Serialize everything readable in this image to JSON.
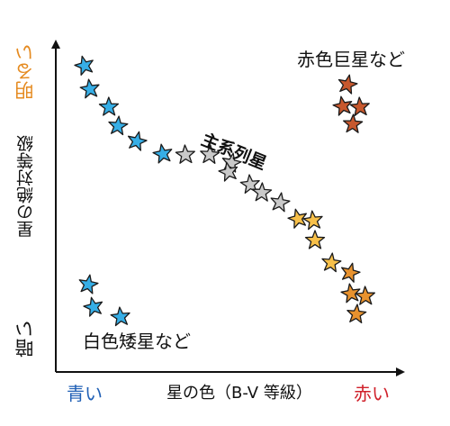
{
  "diagram": {
    "y_label": "星の絶対等級",
    "y_top": "明るい",
    "y_bottom": "暗い",
    "x_label": "星の色（B-V 等級）",
    "x_left": "青い",
    "x_right": "赤い",
    "label_main_sequence": "主系列星",
    "label_red_giants": "赤色巨星など",
    "label_white_dwarfs": "白色矮星など"
  },
  "colors": {
    "bright": "#e58a1f",
    "blue_word": "#1f5fb5",
    "red_word": "#d0202a",
    "star_blue": "#36aee6",
    "star_gray": "#c9c9c9",
    "star_yellow": "#f7c04a",
    "star_orange": "#e8922e",
    "star_red": "#c7582e"
  },
  "stars": [
    {
      "group": "main-sequence",
      "color": "blue"
    },
    {
      "group": "main-sequence",
      "color": "blue"
    },
    {
      "group": "main-sequence",
      "color": "blue"
    },
    {
      "group": "main-sequence",
      "color": "blue"
    },
    {
      "group": "main-sequence",
      "color": "blue"
    },
    {
      "group": "main-sequence",
      "color": "blue"
    },
    {
      "group": "main-sequence",
      "color": "gray"
    },
    {
      "group": "main-sequence",
      "color": "gray"
    },
    {
      "group": "main-sequence",
      "color": "gray"
    },
    {
      "group": "main-sequence",
      "color": "gray"
    },
    {
      "group": "main-sequence",
      "color": "gray"
    },
    {
      "group": "main-sequence",
      "color": "gray"
    },
    {
      "group": "main-sequence",
      "color": "gray"
    },
    {
      "group": "main-sequence",
      "color": "yellow"
    },
    {
      "group": "main-sequence",
      "color": "yellow"
    },
    {
      "group": "main-sequence",
      "color": "yellow"
    },
    {
      "group": "main-sequence",
      "color": "yellow"
    },
    {
      "group": "main-sequence",
      "color": "orange"
    },
    {
      "group": "main-sequence",
      "color": "orange"
    },
    {
      "group": "main-sequence",
      "color": "orange"
    },
    {
      "group": "main-sequence",
      "color": "orange"
    },
    {
      "group": "giant",
      "color": "red"
    },
    {
      "group": "giant",
      "color": "red"
    },
    {
      "group": "giant",
      "color": "red"
    },
    {
      "group": "giant",
      "color": "red"
    },
    {
      "group": "white-dwarf",
      "color": "blue"
    },
    {
      "group": "white-dwarf",
      "color": "blue"
    },
    {
      "group": "white-dwarf",
      "color": "blue"
    }
  ]
}
